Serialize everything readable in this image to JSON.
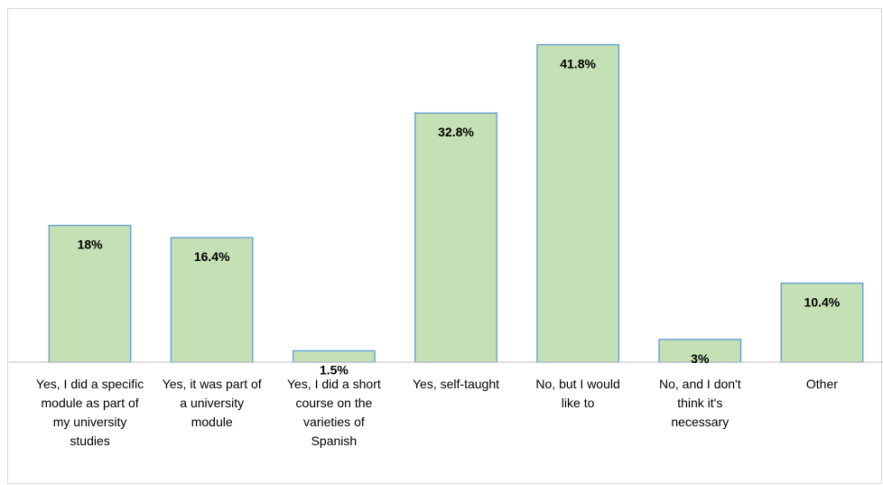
{
  "chart_data": {
    "type": "bar",
    "categories": [
      "Yes, I did a specific module as part of my university studies",
      "Yes, it was part of a university module",
      "Yes, I did a short course on the varieties of Spanish",
      "Yes, self-taught",
      "No, but I would like to",
      "No, and I don't think it's necessary",
      "Other"
    ],
    "category_lines": [
      [
        "Yes, I did a specific",
        "module as part of",
        "my university",
        "studies"
      ],
      [
        "Yes, it was part of",
        "a university",
        "module"
      ],
      [
        "Yes, I did a short",
        "course on the",
        "varieties of",
        "Spanish"
      ],
      [
        "Yes, self-taught"
      ],
      [
        "No, but I would",
        "like to"
      ],
      [
        "No, and I don't",
        "think it's",
        "necessary"
      ],
      [
        "Other"
      ]
    ],
    "values": [
      18,
      16.4,
      1.5,
      32.8,
      41.8,
      3,
      10.4
    ],
    "data_labels": [
      "18%",
      "16.4%",
      "1.5%",
      "32.8%",
      "41.8%",
      "3%",
      "10.4%"
    ],
    "title": "",
    "xlabel": "",
    "ylabel": "",
    "ylim": [
      0,
      45
    ],
    "grid": false,
    "legend": "none",
    "colors": {
      "bar_fill": "#c5e0b4",
      "bar_stroke": "#5b9bd5",
      "axis": "#bfbfbf",
      "border": "#d9d9d9"
    }
  }
}
